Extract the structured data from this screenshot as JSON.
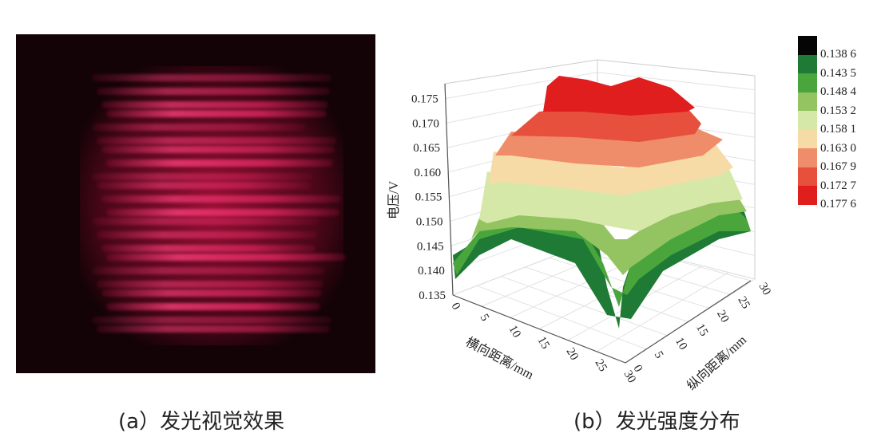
{
  "captions": {
    "a": "(a）发光视觉效果",
    "b": "(b）发光强度分布"
  },
  "chart_data": {
    "type": "surface",
    "title": "",
    "zlabel": "电压/V",
    "xlabel": "横向距离/mm",
    "ylabel": "纵向距离/mm",
    "zlim": [
      0.135,
      0.178
    ],
    "xlim": [
      0,
      30
    ],
    "ylim": [
      0,
      30
    ],
    "z_ticks": [
      "0.135",
      "0.140",
      "0.145",
      "0.150",
      "0.155",
      "0.160",
      "0.165",
      "0.170",
      "0.175"
    ],
    "x_ticks": [
      "0",
      "5",
      "10",
      "15",
      "20",
      "25",
      "30"
    ],
    "y_ticks": [
      "0",
      "5",
      "10",
      "15",
      "20",
      "25",
      "30"
    ],
    "colorbar": {
      "levels": [
        "0.138 6",
        "0.143 5",
        "0.148 4",
        "0.153 2",
        "0.158 1",
        "0.163 0",
        "0.167 9",
        "0.172 7",
        "0.177 6"
      ],
      "colors": [
        "#050505",
        "#1e7a35",
        "#4aa63c",
        "#94c462",
        "#d6e8a8",
        "#f7dba6",
        "#ef8c6a",
        "#e6503d",
        "#e01e1e"
      ]
    },
    "description_values": {
      "peak_voltage": 0.1776,
      "min_voltage": 0.1386
    }
  }
}
